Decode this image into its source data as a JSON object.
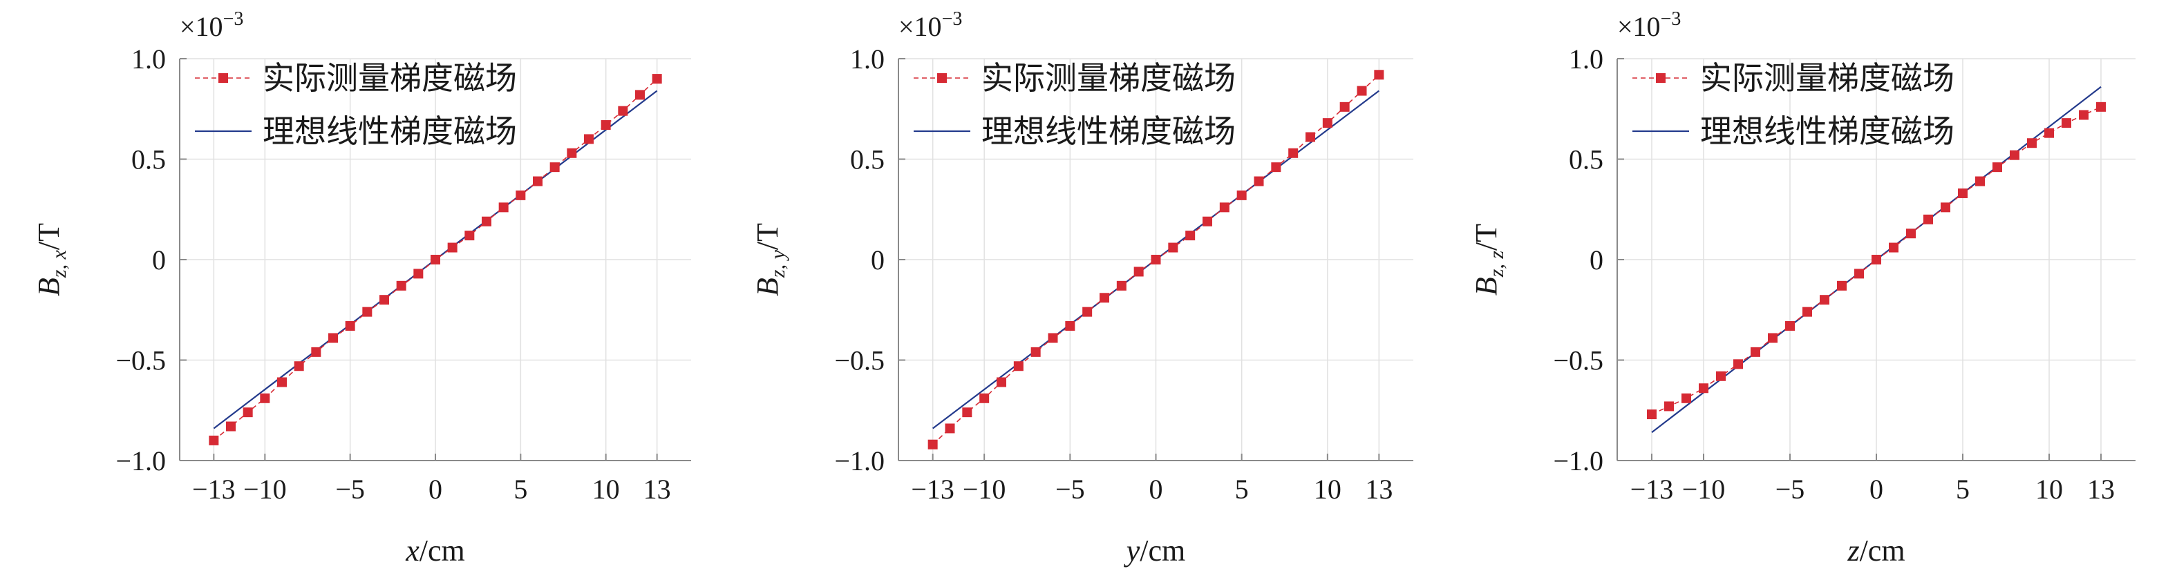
{
  "colors": {
    "measured": "#d62a34",
    "ideal": "#233a8c",
    "grid": "#e1e1e1",
    "axis": "#8a8a8a"
  },
  "chart_data": [
    {
      "type": "line",
      "xlabel": {
        "var": "x",
        "unit": "/cm"
      },
      "ylabel": {
        "main": "B",
        "sub": "z, x",
        "unit": "/T"
      },
      "multiplier": {
        "base": "×10",
        "exp": "−3"
      },
      "xlim": [
        -15,
        15
      ],
      "ylim": [
        -1.0,
        1.0
      ],
      "xticks": [
        -13,
        -10,
        -5,
        0,
        5,
        10,
        13
      ],
      "xtick_labels": [
        "−13",
        "−10",
        "−5",
        "0",
        "5",
        "10",
        "13"
      ],
      "yticks": [
        1.0,
        0.5,
        0,
        -0.5,
        -1.0
      ],
      "ytick_labels": [
        "1.0",
        "0.5",
        "0",
        "−0.5",
        "−1.0"
      ],
      "grid": true,
      "legend_position": "top-left",
      "series": [
        {
          "name": "实际测量梯度磁场",
          "style": "dashed-square-markers",
          "x": [
            -13,
            -12,
            -11,
            -10,
            -9,
            -8,
            -7,
            -6,
            -5,
            -4,
            -3,
            -2,
            -1,
            0,
            1,
            2,
            3,
            4,
            5,
            6,
            7,
            8,
            9,
            10,
            11,
            12,
            13
          ],
          "y": [
            -0.9,
            -0.83,
            -0.76,
            -0.69,
            -0.61,
            -0.53,
            -0.46,
            -0.39,
            -0.33,
            -0.26,
            -0.2,
            -0.13,
            -0.07,
            0.0,
            0.06,
            0.12,
            0.19,
            0.26,
            0.32,
            0.39,
            0.46,
            0.53,
            0.6,
            0.67,
            0.74,
            0.82,
            0.9
          ]
        },
        {
          "name": "理想线性梯度磁场",
          "style": "solid-line",
          "x": [
            -13,
            13
          ],
          "y": [
            -0.84,
            0.84
          ]
        }
      ]
    },
    {
      "type": "line",
      "xlabel": {
        "var": "y",
        "unit": "/cm"
      },
      "ylabel": {
        "main": "B",
        "sub": "z, y",
        "unit": "/T"
      },
      "multiplier": {
        "base": "×10",
        "exp": "−3"
      },
      "xlim": [
        -15,
        15
      ],
      "ylim": [
        -1.0,
        1.0
      ],
      "xticks": [
        -13,
        -10,
        -5,
        0,
        5,
        10,
        13
      ],
      "xtick_labels": [
        "−13",
        "−10",
        "−5",
        "0",
        "5",
        "10",
        "13"
      ],
      "yticks": [
        1.0,
        0.5,
        0,
        -0.5,
        -1.0
      ],
      "ytick_labels": [
        "1.0",
        "0.5",
        "0",
        "−0.5",
        "−1.0"
      ],
      "grid": true,
      "legend_position": "top-left",
      "series": [
        {
          "name": "实际测量梯度磁场",
          "style": "dashed-square-markers",
          "x": [
            -13,
            -12,
            -11,
            -10,
            -9,
            -8,
            -7,
            -6,
            -5,
            -4,
            -3,
            -2,
            -1,
            0,
            1,
            2,
            3,
            4,
            5,
            6,
            7,
            8,
            9,
            10,
            11,
            12,
            13
          ],
          "y": [
            -0.92,
            -0.84,
            -0.76,
            -0.69,
            -0.61,
            -0.53,
            -0.46,
            -0.39,
            -0.33,
            -0.26,
            -0.19,
            -0.13,
            -0.06,
            0.0,
            0.06,
            0.12,
            0.19,
            0.26,
            0.32,
            0.39,
            0.46,
            0.53,
            0.61,
            0.68,
            0.76,
            0.84,
            0.92
          ]
        },
        {
          "name": "理想线性梯度磁场",
          "style": "solid-line",
          "x": [
            -13,
            13
          ],
          "y": [
            -0.84,
            0.84
          ]
        }
      ]
    },
    {
      "type": "line",
      "xlabel": {
        "var": "z",
        "unit": "/cm"
      },
      "ylabel": {
        "main": "B",
        "sub": "z, z",
        "unit": "/T"
      },
      "multiplier": {
        "base": "×10",
        "exp": "−3"
      },
      "xlim": [
        -15,
        15
      ],
      "ylim": [
        -1.0,
        1.0
      ],
      "xticks": [
        -13,
        -10,
        -5,
        0,
        5,
        10,
        13
      ],
      "xtick_labels": [
        "−13",
        "−10",
        "−5",
        "0",
        "5",
        "10",
        "13"
      ],
      "yticks": [
        1.0,
        0.5,
        0,
        -0.5,
        -1.0
      ],
      "ytick_labels": [
        "1.0",
        "0.5",
        "0",
        "−0.5",
        "−1.0"
      ],
      "grid": true,
      "legend_position": "top-left",
      "series": [
        {
          "name": "实际测量梯度磁场",
          "style": "dashed-square-markers",
          "x": [
            -13,
            -12,
            -11,
            -10,
            -9,
            -8,
            -7,
            -6,
            -5,
            -4,
            -3,
            -2,
            -1,
            0,
            1,
            2,
            3,
            4,
            5,
            6,
            7,
            8,
            9,
            10,
            11,
            12,
            13
          ],
          "y": [
            -0.77,
            -0.73,
            -0.69,
            -0.64,
            -0.58,
            -0.52,
            -0.46,
            -0.39,
            -0.33,
            -0.26,
            -0.2,
            -0.13,
            -0.07,
            0.0,
            0.06,
            0.13,
            0.2,
            0.26,
            0.33,
            0.39,
            0.46,
            0.52,
            0.58,
            0.63,
            0.68,
            0.72,
            0.76
          ]
        },
        {
          "name": "理想线性梯度磁场",
          "style": "solid-line",
          "x": [
            -13,
            13
          ],
          "y": [
            -0.86,
            0.86
          ]
        }
      ]
    }
  ]
}
